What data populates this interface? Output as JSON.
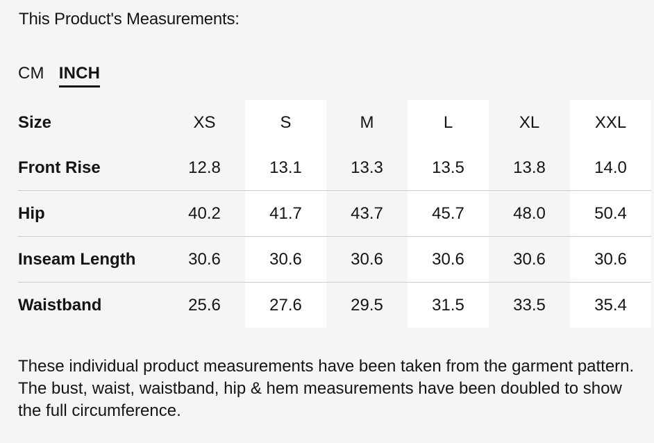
{
  "heading": "This Product's Measurements:",
  "unit_tabs": [
    {
      "label": "CM",
      "active": false
    },
    {
      "label": "INCH",
      "active": true
    }
  ],
  "table": {
    "size_header": "Size",
    "sizes": [
      "XS",
      "S",
      "M",
      "L",
      "XL",
      "XXL"
    ],
    "rows": [
      {
        "label": "Front Rise",
        "values": [
          "12.8",
          "13.1",
          "13.3",
          "13.5",
          "13.8",
          "14.0"
        ]
      },
      {
        "label": "Hip",
        "values": [
          "40.2",
          "41.7",
          "43.7",
          "45.7",
          "48.0",
          "50.4"
        ]
      },
      {
        "label": "Inseam Length",
        "values": [
          "30.6",
          "30.6",
          "30.6",
          "30.6",
          "30.6",
          "30.6"
        ]
      },
      {
        "label": "Waistband",
        "values": [
          "25.6",
          "27.6",
          "29.5",
          "31.5",
          "33.5",
          "35.4"
        ]
      }
    ]
  },
  "note": "These individual product measurements have been taken from the garment pattern. The bust, waist, waistband, hip & hem measurements have been doubled to show the full circumference."
}
